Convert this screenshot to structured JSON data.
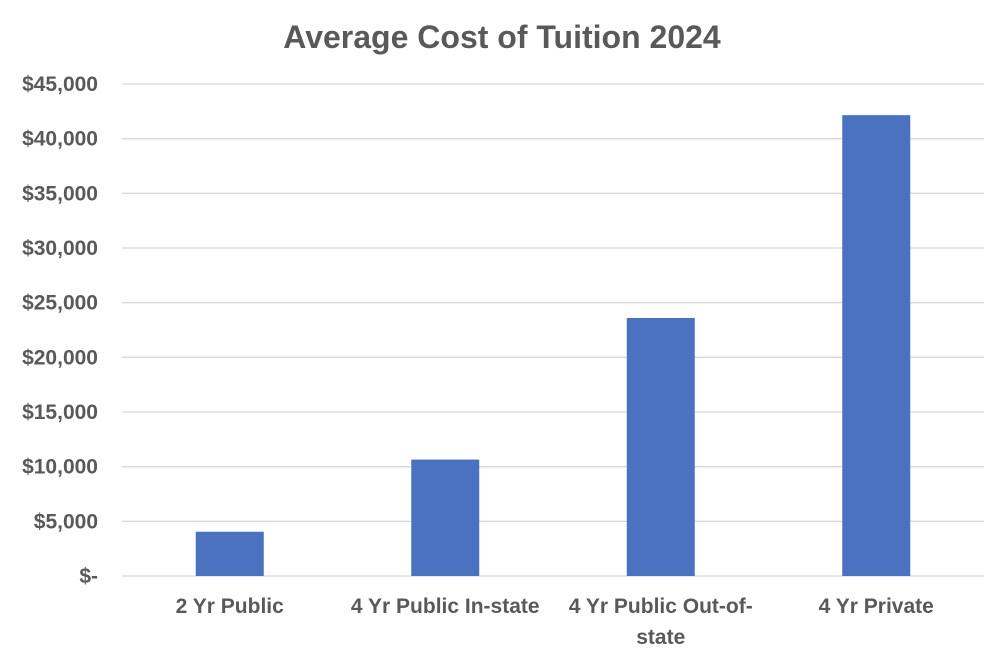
{
  "chart_data": {
    "type": "bar",
    "title": "Average Cost of Tuition 2024",
    "xlabel": "",
    "ylabel": "",
    "categories": [
      "2 Yr Public",
      "4 Yr Public In-state",
      "4 Yr Public Out-of-state",
      "4 Yr Private"
    ],
    "category_label_lines": [
      [
        "2 Yr Public"
      ],
      [
        "4 Yr Public In-state"
      ],
      [
        "4 Yr Public Out-of-",
        "state"
      ],
      [
        "4 Yr Private"
      ]
    ],
    "values": [
      4050,
      10650,
      23600,
      42150
    ],
    "ylim": [
      0,
      45000
    ],
    "yticks": [
      0,
      5000,
      10000,
      15000,
      20000,
      25000,
      30000,
      35000,
      40000,
      45000
    ],
    "ytick_labels": [
      "$-",
      "$5,000",
      "$10,000",
      "$15,000",
      "$20,000",
      "$25,000",
      "$30,000",
      "$35,000",
      "$40,000",
      "$45,000"
    ],
    "grid": true,
    "legend": "none",
    "colors": {
      "bar": "#4a72c0",
      "grid": "#d9d9d9",
      "text": "#595959"
    }
  }
}
